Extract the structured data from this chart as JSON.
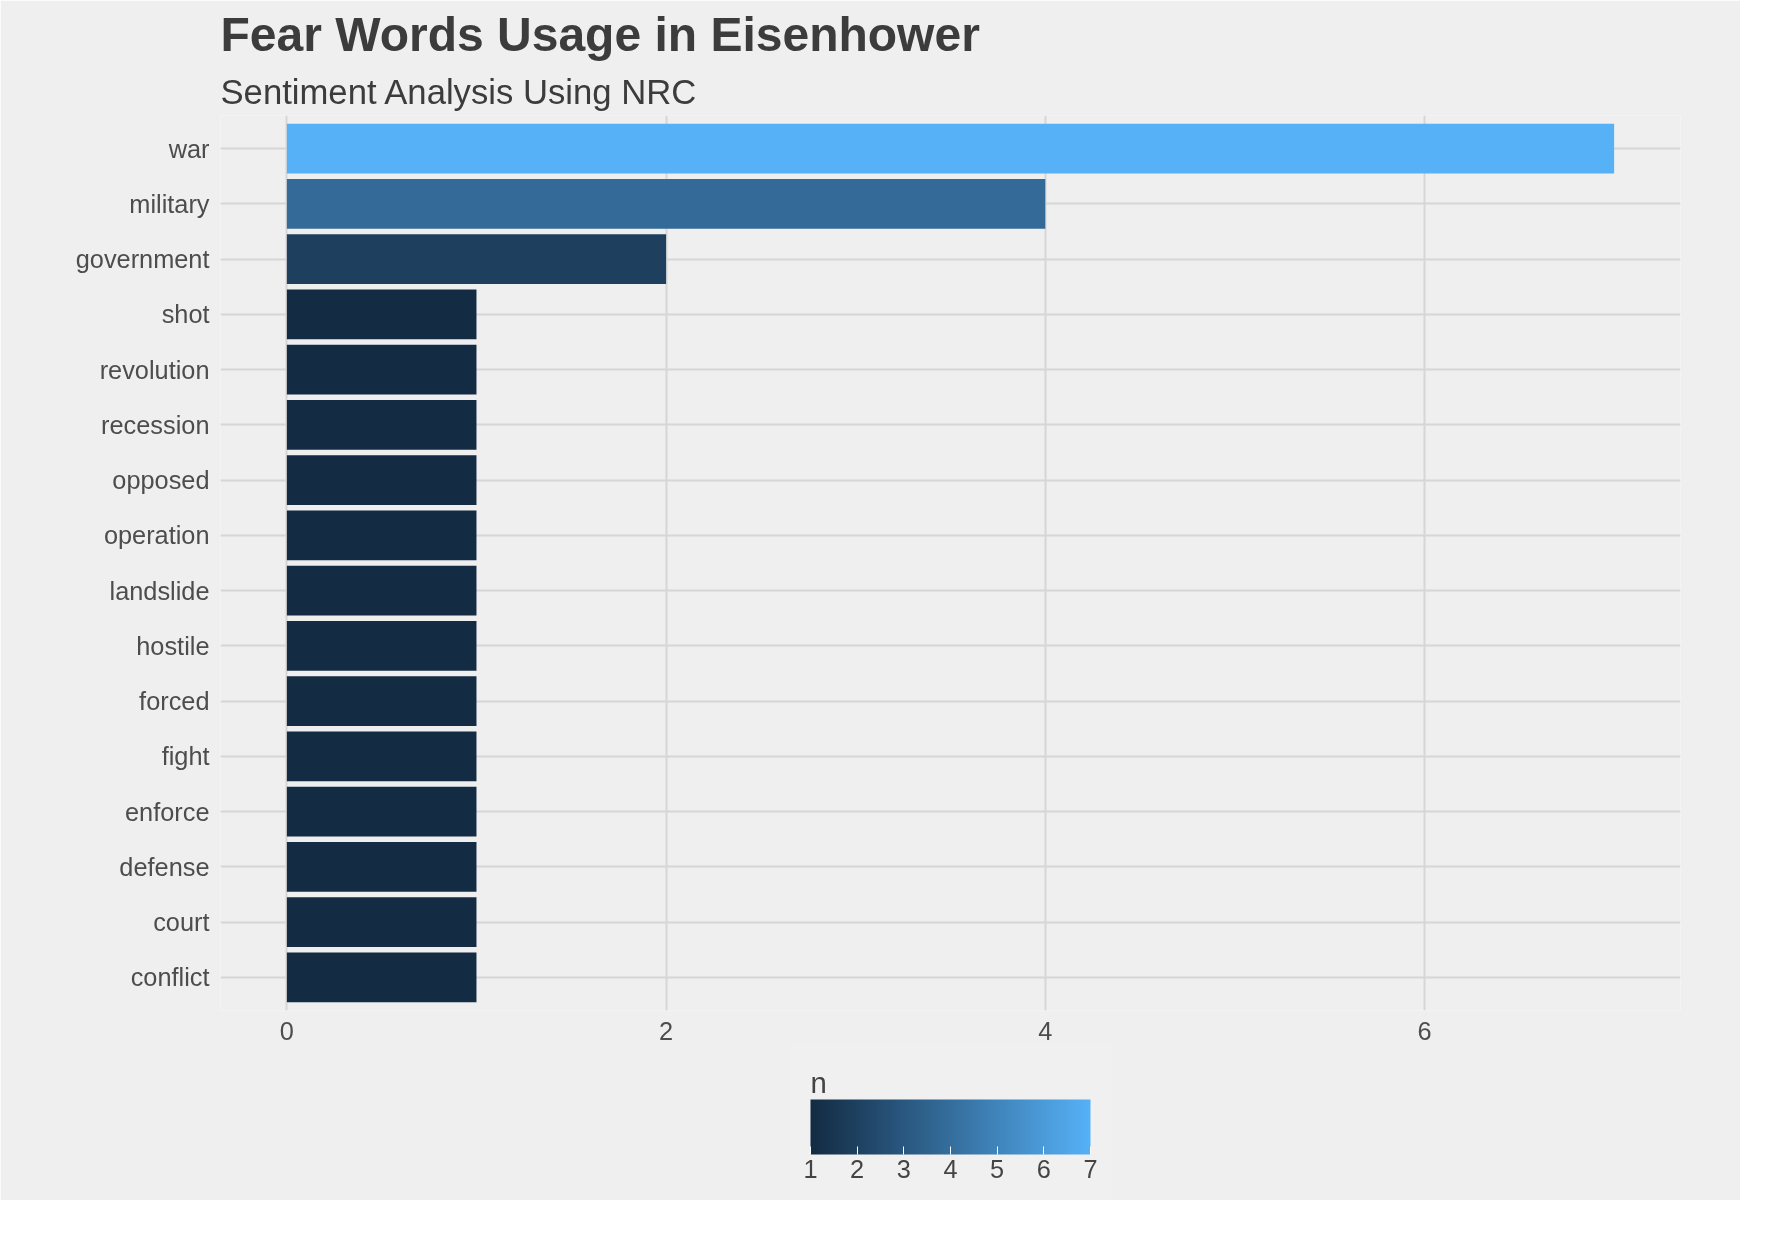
{
  "chart_data": {
    "type": "bar",
    "orientation": "horizontal",
    "title": "Fear Words Usage in Eisenhower",
    "subtitle": "Sentiment Analysis Using NRC",
    "categories": [
      "war",
      "military",
      "government",
      "shot",
      "revolution",
      "recession",
      "opposed",
      "operation",
      "landslide",
      "hostile",
      "forced",
      "fight",
      "enforce",
      "defense",
      "court",
      "conflict"
    ],
    "values": [
      7,
      4,
      2,
      1,
      1,
      1,
      1,
      1,
      1,
      1,
      1,
      1,
      1,
      1,
      1,
      1
    ],
    "colors": [
      "#56b1f7",
      "#336a98",
      "#1e3f5e",
      "#132b43",
      "#132b43",
      "#132b43",
      "#132b43",
      "#132b43",
      "#132b43",
      "#132b43",
      "#132b43",
      "#132b43",
      "#132b43",
      "#132b43",
      "#132b43",
      "#132b43"
    ],
    "xlim": [
      -0.35,
      7.35
    ],
    "xticks": [
      0,
      2,
      4,
      6
    ],
    "grid": true,
    "clabel": "n",
    "clim": [
      1,
      7
    ],
    "cticks": [
      1,
      2,
      3,
      4,
      5,
      6,
      7
    ]
  }
}
